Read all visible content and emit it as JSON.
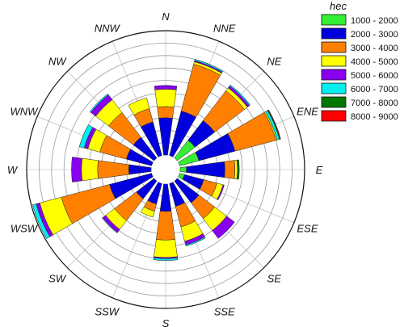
{
  "chart_data": {
    "type": "wind-rose",
    "legend_title": "hec",
    "bins": [
      {
        "label": "1000 - 2000",
        "color": "#33ee33"
      },
      {
        "label": "2000 - 3000",
        "color": "#0000dd"
      },
      {
        "label": "3000 - 4000",
        "color": "#ff8000"
      },
      {
        "label": "4000 - 5000",
        "color": "#ffff00"
      },
      {
        "label": "5000 - 6000",
        "color": "#8800ee"
      },
      {
        "label": "6000 - 7000",
        "color": "#00eeee"
      },
      {
        "label": "7000 - 8000",
        "color": "#007700"
      },
      {
        "label": "8000 - 9000",
        "color": "#ff0000"
      }
    ],
    "directions": [
      "N",
      "NNE",
      "NE",
      "ENE",
      "E",
      "ESE",
      "SE",
      "SSE",
      "S",
      "SSW",
      "SW",
      "WSW",
      "W",
      "WNW",
      "NW",
      "NNW"
    ],
    "radial_max": 10,
    "rings": 10,
    "series": [
      {
        "direction": "N",
        "values": [
          0.0,
          3.0,
          0.9,
          1.4,
          0.3,
          0.0,
          0.0,
          0.0
        ]
      },
      {
        "direction": "NNE",
        "values": [
          0.0,
          3.7,
          3.9,
          0.2,
          0.1,
          0.1,
          0.0,
          0.0
        ]
      },
      {
        "direction": "NE",
        "values": [
          1.8,
          2.0,
          3.0,
          0.3,
          0.2,
          0.1,
          0.0,
          0.0
        ]
      },
      {
        "direction": "ENE",
        "values": [
          1.6,
          3.0,
          3.4,
          0.1,
          0.0,
          0.2,
          0.05,
          0.05
        ]
      },
      {
        "direction": "E",
        "values": [
          0.5,
          3.1,
          0.8,
          0.2,
          0.0,
          0.05,
          0.1,
          0.0
        ]
      },
      {
        "direction": "ESE",
        "values": [
          0.4,
          1.6,
          1.1,
          0.5,
          0.1,
          0.0,
          0.0,
          0.0
        ]
      },
      {
        "direction": "SE",
        "values": [
          0.0,
          2.2,
          1.6,
          1.2,
          0.8,
          0.0,
          0.0,
          0.0
        ]
      },
      {
        "direction": "SSE",
        "values": [
          0.0,
          1.9,
          1.7,
          1.2,
          0.3,
          0.1,
          0.0,
          0.0
        ]
      },
      {
        "direction": "S",
        "values": [
          0.0,
          2.2,
          2.3,
          1.4,
          0.1,
          0.15,
          0.0,
          0.0
        ]
      },
      {
        "direction": "SSW",
        "values": [
          0.0,
          1.7,
          0.6,
          0.5,
          0.0,
          0.0,
          0.0,
          0.0
        ]
      },
      {
        "direction": "SW",
        "values": [
          0.0,
          1.8,
          2.2,
          0.9,
          0.3,
          0.05,
          0.0,
          0.0
        ]
      },
      {
        "direction": "WSW",
        "values": [
          0.0,
          3.5,
          4.0,
          1.8,
          0.3,
          0.3,
          0.0,
          0.0
        ]
      },
      {
        "direction": "W",
        "values": [
          0.0,
          1.8,
          2.5,
          1.3,
          0.8,
          0.0,
          0.0,
          0.0
        ]
      },
      {
        "direction": "WNW",
        "values": [
          0.0,
          2.1,
          2.2,
          1.0,
          0.3,
          0.4,
          0.0,
          0.0
        ]
      },
      {
        "direction": "NW",
        "values": [
          0.0,
          2.1,
          2.5,
          1.3,
          0.5,
          0.1,
          0.0,
          0.0
        ]
      },
      {
        "direction": "NNW",
        "values": [
          0.0,
          2.8,
          1.1,
          0.9,
          0.0,
          0.0,
          0.0,
          0.0
        ]
      }
    ]
  }
}
